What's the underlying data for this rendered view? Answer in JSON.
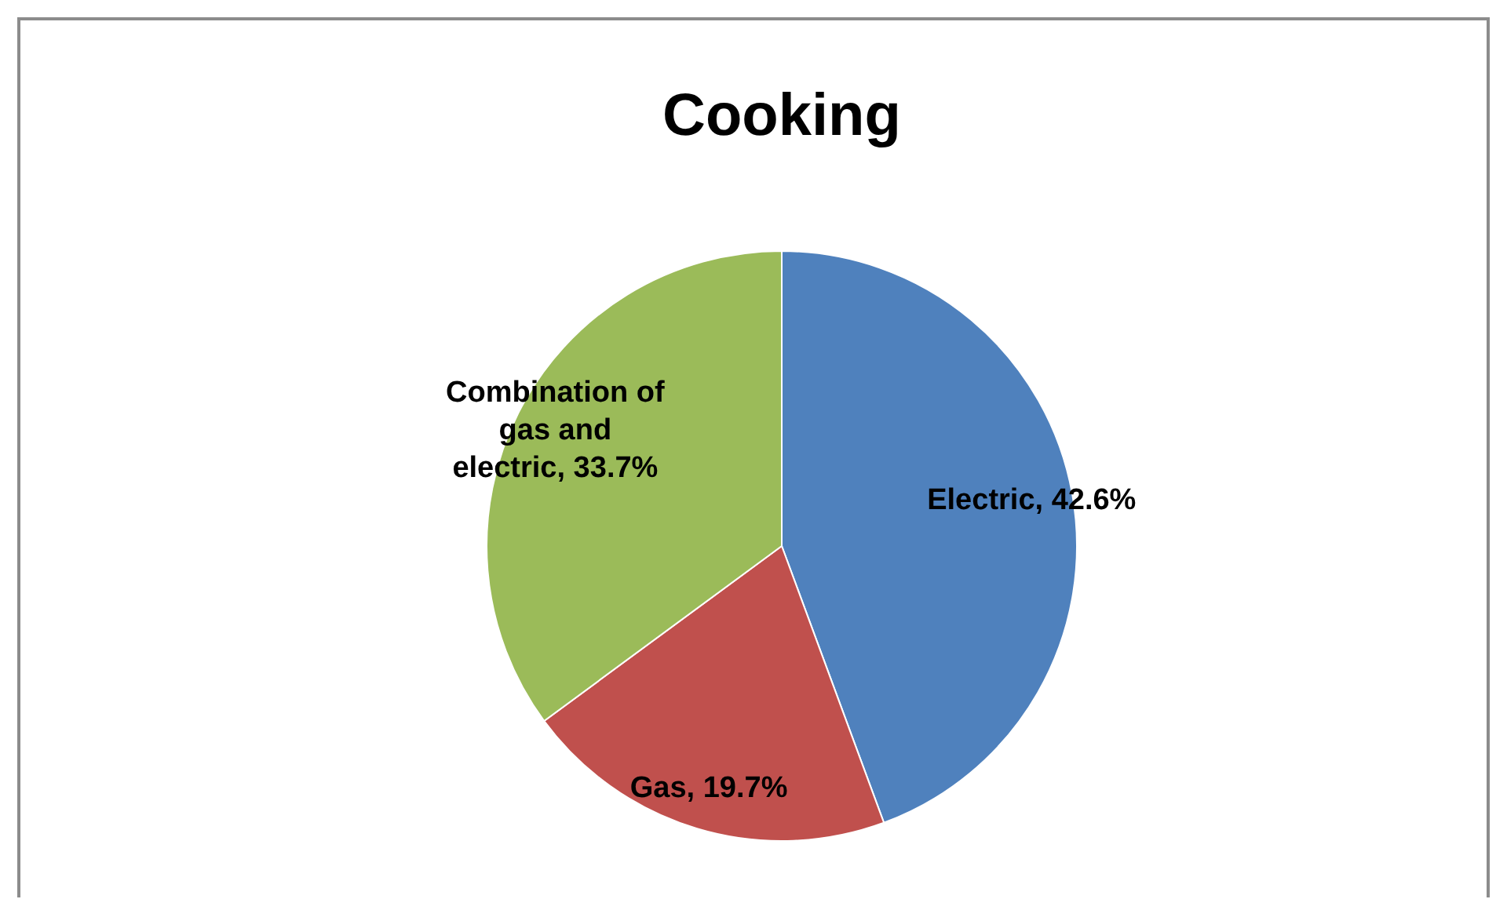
{
  "chart_data": {
    "type": "pie",
    "title": "Cooking",
    "categories": [
      "Electric",
      "Gas",
      "Combination of gas and electric"
    ],
    "values": [
      42.6,
      19.7,
      33.7
    ],
    "value_labels": [
      "42.6%",
      "19.7%",
      "33.7%"
    ],
    "colors": [
      "#4f81bd",
      "#c0504d",
      "#9bbb59"
    ]
  }
}
